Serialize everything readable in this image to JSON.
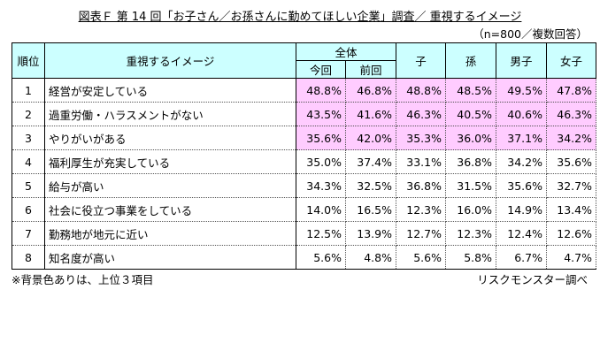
{
  "title": "図表Ｆ 第 14 回「お子さん／お孫さんに勤めてほしい企業」調査／ 重視するイメージ",
  "sample_note": "（n=800／複数回答）",
  "headers": {
    "rank": "順位",
    "item": "重視するイメージ",
    "overall": "全体",
    "current": "今回",
    "previous": "前回",
    "child": "子",
    "grandchild": "孫",
    "male": "男子",
    "female": "女子"
  },
  "rows": [
    {
      "rank": "1",
      "item": "経営が安定している",
      "values": [
        "48.8%",
        "46.8%",
        "48.8%",
        "48.5%",
        "49.5%",
        "47.8%"
      ],
      "highlight": true
    },
    {
      "rank": "2",
      "item": "過重労働・ハラスメントがない",
      "values": [
        "43.5%",
        "41.6%",
        "46.3%",
        "40.5%",
        "40.6%",
        "46.3%"
      ],
      "highlight": true
    },
    {
      "rank": "3",
      "item": "やりがいがある",
      "values": [
        "35.6%",
        "42.0%",
        "35.3%",
        "36.0%",
        "37.1%",
        "34.2%"
      ],
      "highlight": true
    },
    {
      "rank": "4",
      "item": "福利厚生が充実している",
      "values": [
        "35.0%",
        "37.4%",
        "33.1%",
        "36.8%",
        "34.2%",
        "35.6%"
      ]
    },
    {
      "rank": "5",
      "item": "給与が高い",
      "values": [
        "34.3%",
        "32.5%",
        "36.8%",
        "31.5%",
        "35.6%",
        "32.7%"
      ]
    },
    {
      "rank": "6",
      "item": "社会に役立つ事業をしている",
      "values": [
        "14.0%",
        "16.5%",
        "12.3%",
        "16.0%",
        "14.9%",
        "13.4%"
      ]
    },
    {
      "rank": "7",
      "item": "勤務地が地元に近い",
      "values": [
        "12.5%",
        "13.9%",
        "12.7%",
        "12.3%",
        "12.4%",
        "12.6%"
      ]
    },
    {
      "rank": "8",
      "item": "知名度が高い",
      "values": [
        "5.6%",
        "4.8%",
        "5.6%",
        "5.8%",
        "6.7%",
        "4.7%"
      ]
    }
  ],
  "footnote": "※背景色ありは、上位３項目",
  "source": "リスクモンスター調べ",
  "colors": {
    "header_bg": "#ccffff",
    "highlight_bg": "#ffccff"
  }
}
